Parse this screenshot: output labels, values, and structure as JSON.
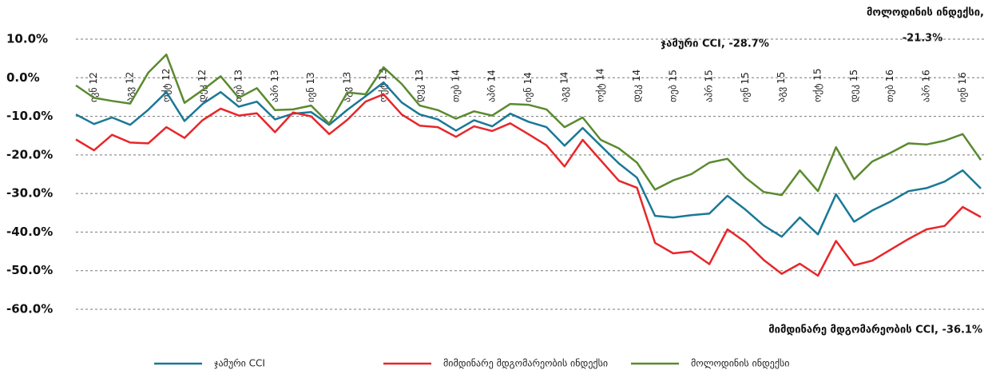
{
  "chart_data": {
    "type": "line",
    "categories": [
      null,
      "ივნ 12",
      null,
      "აგვ 12",
      null,
      "ოქტ 12",
      null,
      "დეკ 12",
      null,
      "თებ 13",
      null,
      "აპრ 13",
      null,
      "ივნ 13",
      null,
      "აგვ 13",
      null,
      "ოქტ 13",
      null,
      "დეკ 13",
      null,
      "თებ 14",
      null,
      "აპრ 14",
      null,
      "ივნ 14",
      null,
      "აგვ 14",
      null,
      "ოქტ 14",
      null,
      "დეკ 14",
      null,
      "თებ 15",
      null,
      "აპრ 15",
      null,
      "ივნ 15",
      null,
      "აგვ 15",
      null,
      "ოქტ 15",
      null,
      "დეკ 15",
      null,
      "თებ 16",
      null,
      "აპრ 16",
      null,
      "ივნ 16",
      null
    ],
    "series": [
      {
        "name": "ჯამური CCI",
        "color": "#1a7896",
        "values": [
          -9.5,
          -12,
          -10.3,
          -12.2,
          -8.3,
          -3.7,
          -11.2,
          -6.8,
          -3.7,
          -7.5,
          -6.2,
          -10.8,
          -9.3,
          -8.9,
          -12.2,
          -8.3,
          -4.8,
          -1.2,
          -6.4,
          -9.5,
          -10.8,
          -13.7,
          -11,
          -12.6,
          -9.3,
          -11.4,
          -12.8,
          -17.6,
          -13,
          -17.6,
          -22.2,
          -25.9,
          -35.8,
          -36.2,
          -35.6,
          -35.2,
          -30.6,
          -34.2,
          -38.3,
          -41.2,
          -36.2,
          -40.6,
          -30.2,
          -37.3,
          -34.4,
          -32.1,
          -29.4,
          -28.6,
          -26.9,
          -24,
          -28.7
        ]
      },
      {
        "name": "მიმდინარე მდგომარეობის ინდექსი",
        "color": "#e8262a",
        "values": [
          -16,
          -18.8,
          -14.8,
          -16.8,
          -17,
          -12.8,
          -15.6,
          -11,
          -8,
          -9.8,
          -9.2,
          -14.1,
          -9,
          -10,
          -14.6,
          -10.9,
          -6.2,
          -4.3,
          -9.5,
          -12.4,
          -12.8,
          -15.3,
          -12.6,
          -13.8,
          -11.8,
          -14.6,
          -17.5,
          -23,
          -16.1,
          -21.4,
          -26.7,
          -28.5,
          -42.8,
          -45.5,
          -45,
          -48.3,
          -39.3,
          -42.6,
          -47.2,
          -50.8,
          -48.2,
          -51.3,
          -42.3,
          -48.6,
          -47.4,
          -44.6,
          -41.8,
          -39.3,
          -38.4,
          -33.5,
          -36.1
        ]
      },
      {
        "name": "მოლოდინის ინდექსი",
        "color": "#5a8a2f",
        "values": [
          -2,
          -5.2,
          -6,
          -6.7,
          1.3,
          6,
          -6.5,
          -3.2,
          0.4,
          -5.2,
          -2.7,
          -8.4,
          -8.2,
          -7.2,
          -11.9,
          -3.8,
          -4.3,
          2.7,
          -1.6,
          -7.2,
          -8.4,
          -10.6,
          -8.7,
          -9.8,
          -6.8,
          -7,
          -8.2,
          -12.8,
          -10.3,
          -16.1,
          -18.3,
          -22,
          -29,
          -26.6,
          -25,
          -22,
          -21,
          -25.9,
          -29.6,
          -30.4,
          -24,
          -29.4,
          -18,
          -26.3,
          -21.7,
          -19.5,
          -17,
          -17.3,
          -16.3,
          -14.6,
          -21.3
        ]
      }
    ],
    "ylim": [
      -60,
      10
    ],
    "yticks": [
      {
        "value": 10,
        "label": "10.0%"
      },
      {
        "value": 0,
        "label": "0.0%"
      },
      {
        "value": -10,
        "label": "-10.0%"
      },
      {
        "value": -20,
        "label": "-20.0%"
      },
      {
        "value": -30,
        "label": "-30.0%"
      },
      {
        "value": -40,
        "label": "-40.0%"
      },
      {
        "value": -50,
        "label": "-50.0%"
      },
      {
        "value": -60,
        "label": "-60.0%"
      }
    ],
    "grid": true,
    "legend": "bottom",
    "annotations": [
      "მოლოდინის ინდექსი,",
      "-21.3%",
      "ჯამური CCI, -28.7%",
      "მიმდინარე მდგომარეობის CCI, -36.1%"
    ]
  }
}
